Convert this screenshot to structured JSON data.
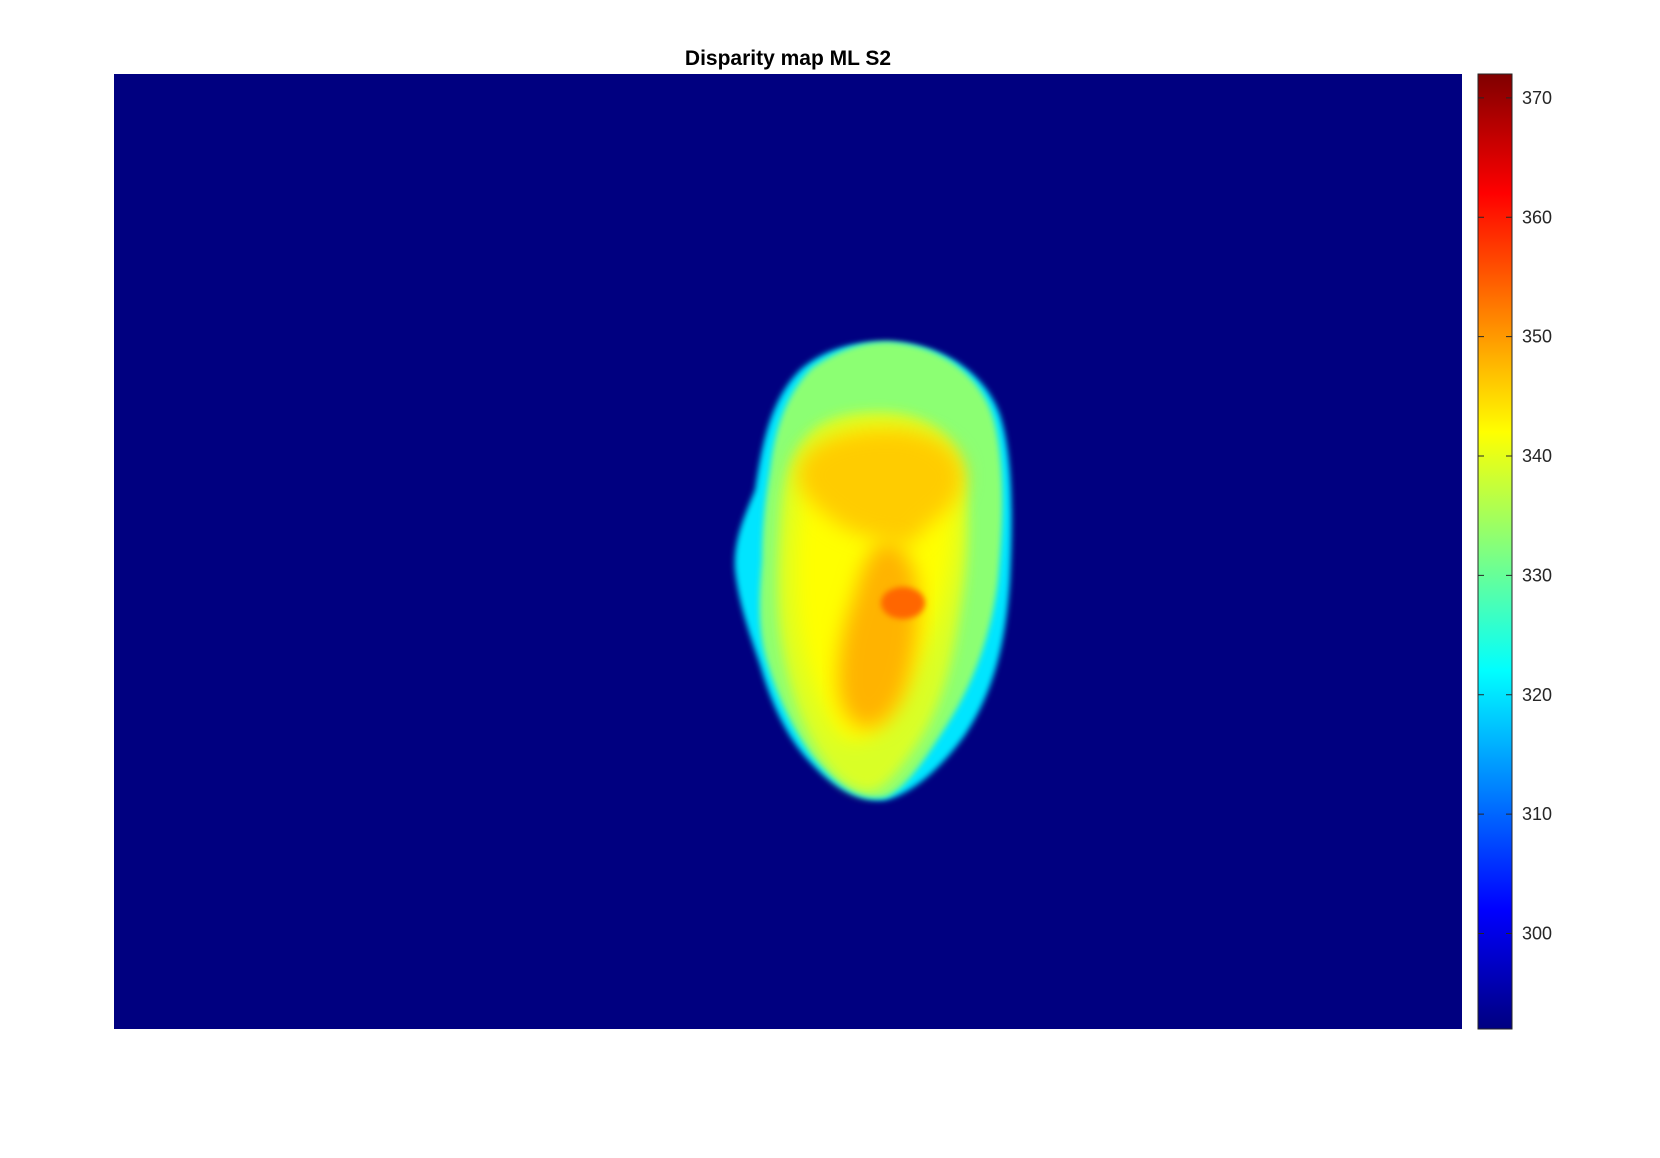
{
  "chart_data": {
    "type": "heatmap",
    "title": "Disparity map ML S2",
    "colormap": "jet",
    "grid": false,
    "legend": "colorbar-right",
    "x_ticks": [],
    "y_ticks": [],
    "background_value": 292,
    "clim": [
      292,
      372
    ],
    "colorbar": {
      "ticks": [
        300,
        310,
        320,
        330,
        340,
        350,
        360,
        370
      ],
      "tick_labels": [
        "300",
        "310",
        "320",
        "330",
        "340",
        "350",
        "360",
        "370"
      ]
    },
    "regions": [
      {
        "name": "outer-rim",
        "value": 320
      },
      {
        "name": "face-outer",
        "value": 333
      },
      {
        "name": "face-mid",
        "value": 339
      },
      {
        "name": "cheeks",
        "value": 342
      },
      {
        "name": "forehead",
        "value": 346
      },
      {
        "name": "center-ridge",
        "value": 348
      },
      {
        "name": "nose-tip",
        "value": 354
      }
    ]
  }
}
